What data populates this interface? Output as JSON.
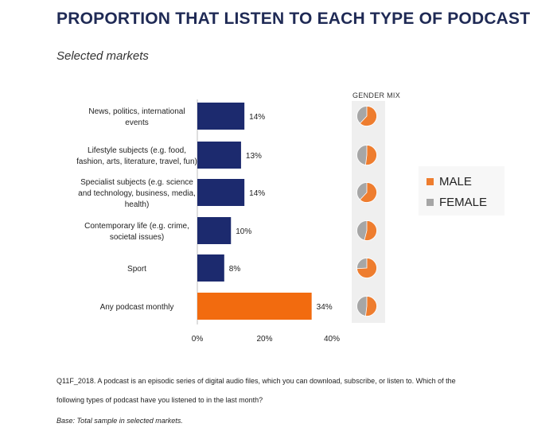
{
  "header": {
    "title": "PROPORTION THAT LISTEN TO EACH TYPE OF PODCAST",
    "subtitle": "Selected markets"
  },
  "chart_data": {
    "type": "bar",
    "orientation": "horizontal",
    "categories": [
      [
        "News, politics, international",
        "events"
      ],
      [
        "Lifestyle subjects (e.g. food,",
        "fashion, arts, literature, travel, fun)"
      ],
      [
        "Specialist subjects (e.g. science",
        "and technology, business, media,",
        "health)"
      ],
      [
        "Contemporary life (e.g. crime,",
        "societal issues)"
      ],
      [
        "Sport"
      ],
      [
        "Any podcast monthly"
      ]
    ],
    "values": [
      14,
      13,
      14,
      10,
      8,
      34
    ],
    "value_labels": [
      "14%",
      "13%",
      "14%",
      "10%",
      "8%",
      "34%"
    ],
    "bar_colors": [
      "#1c2a6e",
      "#1c2a6e",
      "#1c2a6e",
      "#1c2a6e",
      "#1c2a6e",
      "#f26b0f"
    ],
    "xlim": [
      0,
      40
    ],
    "xticks": [
      0,
      20,
      40
    ],
    "xtick_labels": [
      "0%",
      "20%",
      "40%"
    ]
  },
  "gender_mix": {
    "title": "GENDER MIX",
    "male_share": [
      0.62,
      0.52,
      0.62,
      0.54,
      0.74,
      0.52
    ],
    "colors": {
      "male": "#ee7d2f",
      "female": "#a6a6a6"
    },
    "legend": {
      "male": "MALE",
      "female": "FEMALE"
    }
  },
  "footnotes": {
    "line1": "Q11F_2018. A podcast is an episodic series of digital audio files, which you can download, subscribe, or listen to. Which of the",
    "line2": "following types of podcast have you listened to in the last month?",
    "base": "Base: Total sample in selected markets."
  }
}
